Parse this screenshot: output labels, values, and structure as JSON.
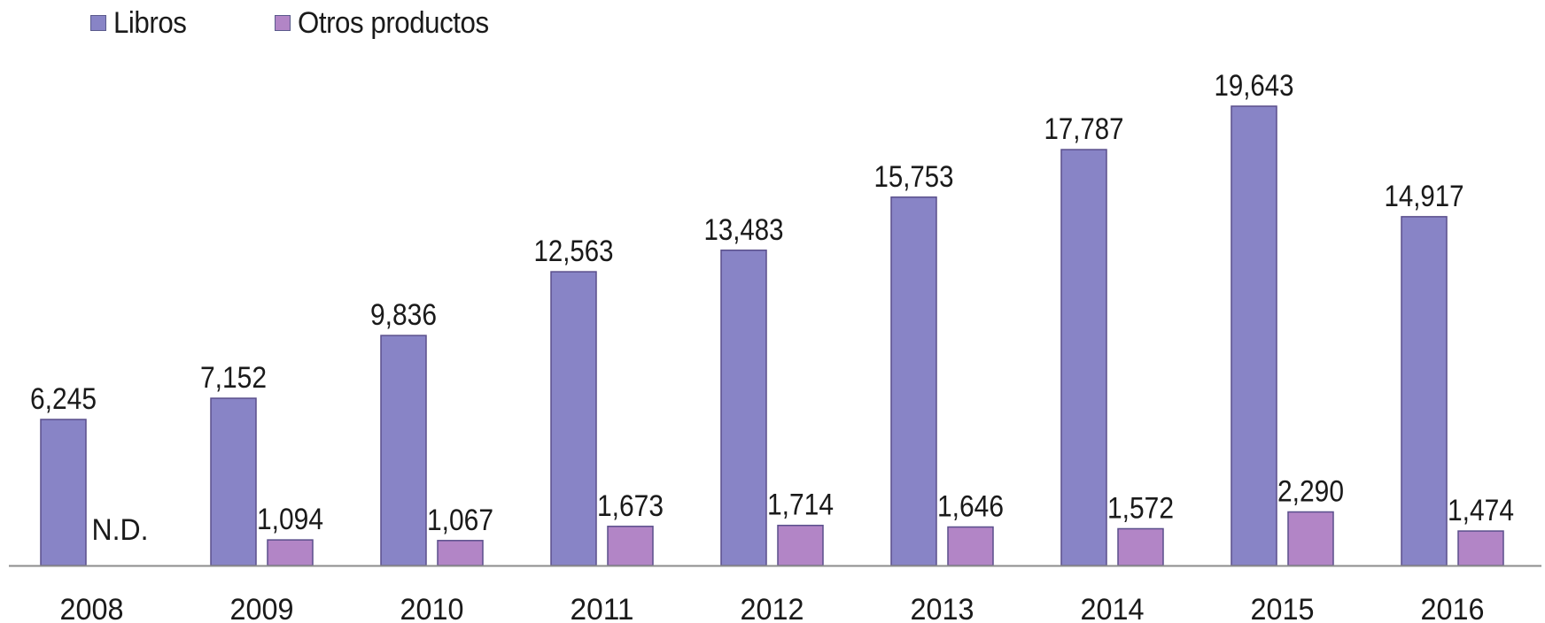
{
  "colors": {
    "libros": "#8884c6",
    "otros": "#b285c6",
    "bar_stroke": "#5a4f8c",
    "axis": "#8c8c8c"
  },
  "chart_data": {
    "type": "bar",
    "categories": [
      "2008",
      "2009",
      "2010",
      "2011",
      "2012",
      "2013",
      "2014",
      "2015",
      "2016"
    ],
    "series": [
      {
        "name": "Libros",
        "values": [
          6245,
          7152,
          9836,
          12563,
          13483,
          15753,
          17787,
          19643,
          14917
        ],
        "labels": [
          "6,245",
          "7,152",
          "9,836",
          "12,563",
          "13,483",
          "15,753",
          "17,787",
          "19,643",
          "14,917"
        ]
      },
      {
        "name": "Otros productos",
        "values": [
          null,
          1094,
          1067,
          1673,
          1714,
          1646,
          1572,
          2290,
          1474
        ],
        "labels": [
          "N.D.",
          "1,094",
          "1,067",
          "1,673",
          "1,714",
          "1,646",
          "1,572",
          "2,290",
          "1,474"
        ]
      }
    ],
    "ylim": [
      0,
      24000
    ],
    "grid": false,
    "legend_position": "top-left"
  }
}
